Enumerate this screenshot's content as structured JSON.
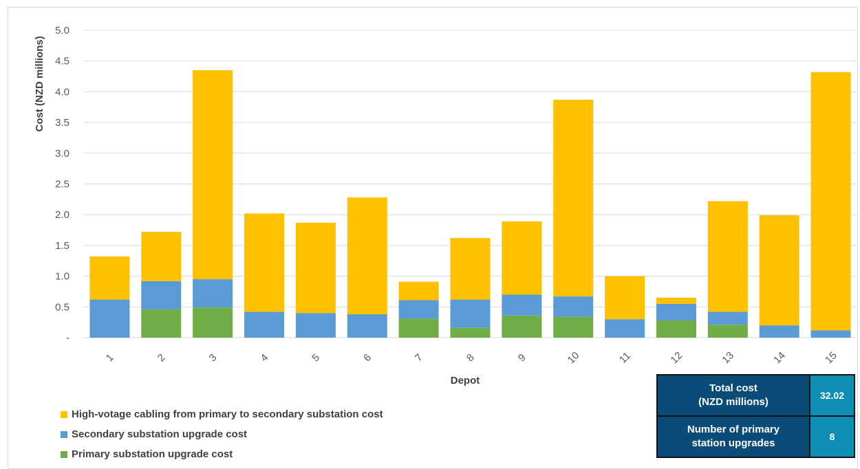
{
  "chart_data": {
    "type": "bar",
    "stacked": true,
    "xlabel": "Depot",
    "ylabel": "Cost (NZD millions)",
    "ylim": [
      0,
      5
    ],
    "yticks": [
      "-",
      "0.5",
      "1.0",
      "1.5",
      "2.0",
      "2.5",
      "3.0",
      "3.5",
      "4.0",
      "4.5",
      "5.0"
    ],
    "categories": [
      "1",
      "2",
      "3",
      "4",
      "5",
      "6",
      "7",
      "8",
      "9",
      "10",
      "11",
      "12",
      "13",
      "14",
      "15"
    ],
    "series": [
      {
        "name": "Primary substation upgrade cost",
        "color": "#70ad47",
        "values": [
          0,
          0.46,
          0.49,
          0,
          0,
          0,
          0.31,
          0.16,
          0.36,
          0.34,
          0,
          0.28,
          0.21,
          0,
          0
        ]
      },
      {
        "name": "Secondary substation upgrade cost",
        "color": "#5b9bd5",
        "values": [
          0.62,
          0.46,
          0.46,
          0.42,
          0.4,
          0.38,
          0.3,
          0.46,
          0.34,
          0.33,
          0.3,
          0.27,
          0.21,
          0.2,
          0.12
        ]
      },
      {
        "name": "High-votage cabling from primary to secondary substation cost",
        "color": "#ffc000",
        "values": [
          0.7,
          0.8,
          3.4,
          1.6,
          1.47,
          1.9,
          0.3,
          1.0,
          1.19,
          3.2,
          0.7,
          0.1,
          1.8,
          1.79,
          4.2
        ]
      }
    ],
    "grid": true,
    "legend_position": "bottom-left"
  },
  "summary": {
    "total_label_line1": "Total cost",
    "total_label_line2": "(NZD millions)",
    "total_value": "32.02",
    "upgrades_label_line1": "Number of primary",
    "upgrades_label_line2": "station upgrades",
    "upgrades_value": "8"
  }
}
